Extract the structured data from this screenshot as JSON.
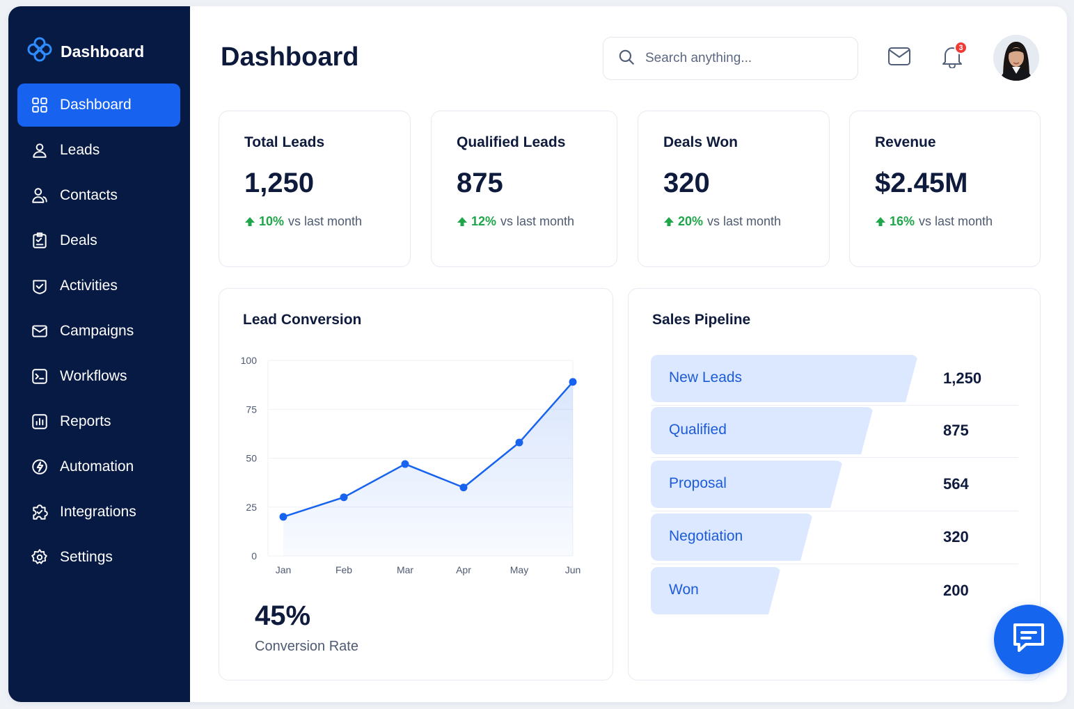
{
  "brand": {
    "name": "Dashboard",
    "icon": "clover-logo-icon"
  },
  "sidebar": {
    "items": [
      {
        "label": "Dashboard",
        "icon": "grid-icon",
        "active": true
      },
      {
        "label": "Leads",
        "icon": "user-icon"
      },
      {
        "label": "Contacts",
        "icon": "users-icon"
      },
      {
        "label": "Deals",
        "icon": "clipboard-icon"
      },
      {
        "label": "Activities",
        "icon": "check-shield-icon"
      },
      {
        "label": "Campaigns",
        "icon": "mail-icon"
      },
      {
        "label": "Workflows",
        "icon": "workflow-icon"
      },
      {
        "label": "Reports",
        "icon": "bar-chart-icon"
      },
      {
        "label": "Automation",
        "icon": "bolt-icon"
      },
      {
        "label": "Integrations",
        "icon": "puzzle-icon"
      },
      {
        "label": "Settings",
        "icon": "gear-icon"
      }
    ]
  },
  "header": {
    "title": "Dashboard",
    "search_placeholder": "Search anything...",
    "notification_count": "3"
  },
  "stats": [
    {
      "title": "Total Leads",
      "value": "1,250",
      "change": "10%",
      "suffix": "vs last month"
    },
    {
      "title": "Qualified Leads",
      "value": "875",
      "change": "12%",
      "suffix": "vs last month"
    },
    {
      "title": "Deals Won",
      "value": "320",
      "change": "20%",
      "suffix": "vs last month"
    },
    {
      "title": "Revenue",
      "value": "$2.45M",
      "change": "16%",
      "suffix": "vs last month"
    }
  ],
  "lead_conversion": {
    "title": "Lead Conversion",
    "rate": "45%",
    "rate_label": "Conversion Rate"
  },
  "chart_data": {
    "type": "area",
    "title": "Lead Conversion",
    "categories": [
      "Jan",
      "Feb",
      "Mar",
      "Apr",
      "May",
      "Jun"
    ],
    "values": [
      20,
      30,
      47,
      35,
      58,
      89
    ],
    "ylim": [
      0,
      100
    ],
    "yticks": [
      0,
      25,
      50,
      75,
      100
    ],
    "grid": true,
    "color": "#1763ef"
  },
  "pipeline": {
    "title": "Sales Pipeline",
    "stages": [
      {
        "label": "New Leads",
        "value": "1,250",
        "amount": 1250
      },
      {
        "label": "Qualified",
        "value": "875",
        "amount": 875
      },
      {
        "label": "Proposal",
        "value": "564",
        "amount": 564
      },
      {
        "label": "Negotiation",
        "value": "320",
        "amount": 320
      },
      {
        "label": "Won",
        "value": "200",
        "amount": 200
      }
    ]
  },
  "colors": {
    "sidebar_bg": "#071a44",
    "accent": "#1763ef",
    "positive": "#1fa64a",
    "pipeline_bar": "#dbe8ff"
  }
}
